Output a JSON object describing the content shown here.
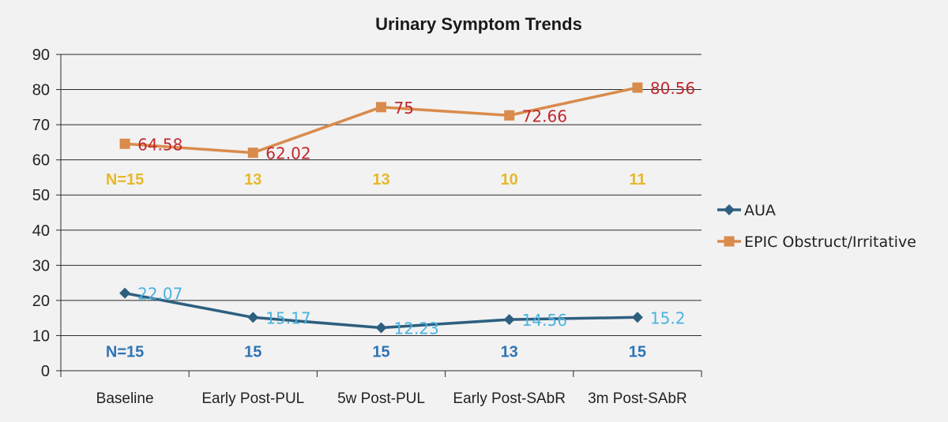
{
  "chart_data": {
    "type": "line",
    "title": "Urinary Symptom Trends",
    "xlabel": "",
    "ylabel": "",
    "categories": [
      "Baseline",
      "Early Post-PUL",
      "5w Post-PUL",
      "Early Post-SAbR",
      "3m Post-SAbR"
    ],
    "ylim": [
      0,
      90
    ],
    "yticks": [
      0,
      10,
      20,
      30,
      40,
      50,
      60,
      70,
      80,
      90
    ],
    "grid": true,
    "legend_position": "right",
    "series": [
      {
        "name": "AUA",
        "values": [
          22.07,
          15.17,
          12.23,
          14.56,
          15.2
        ],
        "labels": [
          "22.07",
          "15.17",
          "12.23",
          "14.56",
          "15.2"
        ],
        "color": "#2e5f80",
        "label_color": "#4ab3e0",
        "marker": "diamond",
        "n_labels": [
          "N=15",
          "15",
          "15",
          "13",
          "15"
        ],
        "n_value_y": 5.5,
        "n_color": "#2f74b5"
      },
      {
        "name": "EPIC Obstruct/Irritative",
        "values": [
          64.58,
          62.02,
          75,
          72.66,
          80.56
        ],
        "labels": [
          "64.58",
          "62.02",
          "75",
          "72.66",
          "80.56"
        ],
        "color": "#d98b4c",
        "label_color": "#c0282d",
        "marker": "square",
        "n_labels": [
          "N=15",
          "13",
          "13",
          "10",
          "11"
        ],
        "n_value_y": 54.5,
        "n_color": "#e6b82c"
      }
    ]
  }
}
